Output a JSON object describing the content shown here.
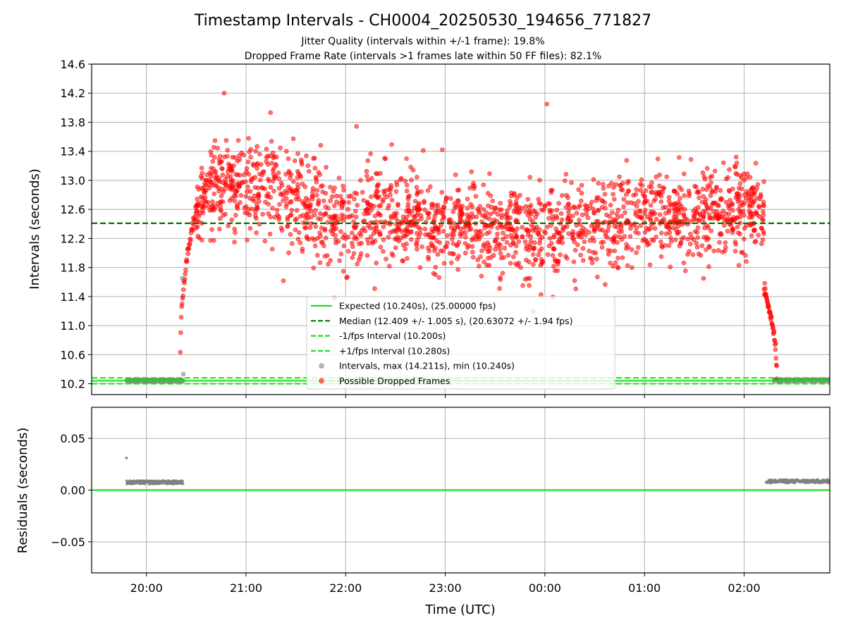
{
  "chart_data": {
    "type": "scatter",
    "title": "Timestamp Intervals - CH0004_20250530_194656_771827",
    "subtitle_lines": [
      "Jitter Quality (intervals within +/-1 frame): 19.8%",
      "Dropped Frame Rate (intervals >1 frames late within 50 FF files): 82.1%"
    ],
    "x_axis": {
      "label": "Time (UTC)",
      "range_hours": [
        19.45,
        26.86
      ],
      "ticks": [
        {
          "value": 20,
          "label": "20:00"
        },
        {
          "value": 21,
          "label": "21:00"
        },
        {
          "value": 22,
          "label": "22:00"
        },
        {
          "value": 23,
          "label": "23:00"
        },
        {
          "value": 24,
          "label": "00:00"
        },
        {
          "value": 25,
          "label": "01:00"
        },
        {
          "value": 26,
          "label": "02:00"
        }
      ]
    },
    "top_panel": {
      "ylabel": "Intervals (seconds)",
      "ylim": [
        10.05,
        14.6
      ],
      "yticks": [
        "10.2",
        "10.6",
        "11.0",
        "11.4",
        "11.8",
        "12.2",
        "12.6",
        "13.0",
        "13.4",
        "13.8",
        "14.2",
        "14.6"
      ],
      "grid": true,
      "reference_lines": [
        {
          "name": "Expected (10.240s), (25.00000 fps)",
          "y": 10.24,
          "style": "solid",
          "color": "#22dd22"
        },
        {
          "name": "Median (12.409 +/- 1.005 s), (20.63072 +/- 1.94 fps)",
          "y": 12.409,
          "style": "dashed",
          "color": "#007700"
        },
        {
          "name": "-1/fps Interval (10.200s)",
          "y": 10.2,
          "style": "dashed",
          "color": "#22dd22"
        },
        {
          "name": "+1/fps Interval (10.280s)",
          "y": 10.28,
          "style": "dashed",
          "color": "#22dd22"
        }
      ],
      "scatter_series": [
        {
          "name": "Intervals, max (14.211s), min (10.240s)",
          "color": "#808080"
        },
        {
          "name": "Possible Dropped Frames",
          "color": "#ff0000"
        }
      ],
      "legend_position": "lower-center",
      "segments": [
        {
          "series": "normal",
          "x_start": 19.8,
          "x_end": 20.37,
          "y_center": 10.245,
          "spread": 0.008
        },
        {
          "series": "normal",
          "x_start": 26.3,
          "x_end": 26.86,
          "y_center": 10.248,
          "spread": 0.008
        },
        {
          "series": "ramp_up",
          "x_start": 20.34,
          "x_end": 20.52,
          "y_start": 10.65,
          "y_end": 12.7
        },
        {
          "series": "dropped",
          "x_start": 20.5,
          "x_end": 22.7,
          "trend": [
            [
              20.5,
              12.7
            ],
            [
              20.8,
              13.0
            ],
            [
              21.2,
              12.85
            ],
            [
              21.6,
              12.65
            ],
            [
              22.0,
              12.45
            ],
            [
              22.7,
              12.5
            ]
          ],
          "spread": 0.45
        },
        {
          "series": "dropped",
          "x_start": 22.7,
          "x_end": 26.2,
          "trend": [
            [
              22.7,
              12.45
            ],
            [
              23.5,
              12.3
            ],
            [
              24.3,
              12.35
            ],
            [
              25.0,
              12.5
            ],
            [
              25.6,
              12.55
            ],
            [
              26.2,
              12.6
            ]
          ],
          "spread": 0.4
        },
        {
          "series": "ramp_down",
          "x_start": 26.2,
          "x_end": 26.33,
          "y_start": 11.5,
          "y_end": 10.25
        }
      ]
    },
    "bottom_panel": {
      "ylabel": "Residuals (seconds)",
      "ylim": [
        -0.08,
        0.08
      ],
      "yticks": [
        "0.05",
        "0.00",
        "−0.05"
      ],
      "ytick_values": [
        0.05,
        0.0,
        -0.05
      ],
      "zero_line_color": "#22dd22",
      "segments": [
        {
          "x_start": 19.8,
          "x_end": 20.37,
          "y": 0.0075
        },
        {
          "x_start": 26.22,
          "x_end": 26.86,
          "y": 0.0085
        }
      ],
      "outlier": {
        "x": 19.8,
        "y": 0.031
      }
    }
  }
}
